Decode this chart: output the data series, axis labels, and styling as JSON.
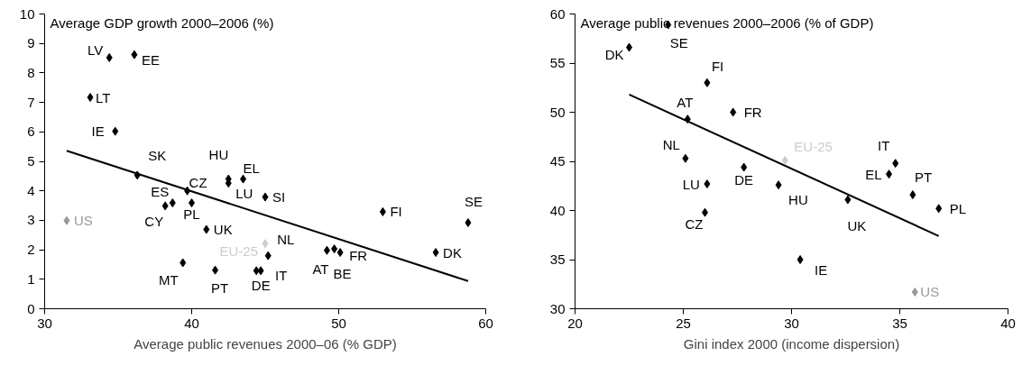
{
  "chart_data": [
    {
      "type": "scatter",
      "ylabel": "Average GDP growth 2000–2006 (%)",
      "xlabel": "Average public revenues 2000–06 (% GDP)",
      "xlim": [
        30,
        60
      ],
      "ylim": [
        0,
        10
      ],
      "xticks": [
        30,
        40,
        50,
        60
      ],
      "yticks": [
        0,
        1,
        2,
        3,
        4,
        5,
        6,
        7,
        8,
        9,
        10
      ],
      "series": [
        {
          "marker": "diamond",
          "color": "#000000",
          "x": [
            34.4,
            36.1,
            33.1,
            34.8,
            36.3,
            42.5,
            43.5,
            39.7,
            42.5,
            45.0,
            38.7,
            38.2,
            40.0,
            41.0,
            39.4,
            41.6,
            44.4,
            44.7,
            45.2,
            49.2,
            49.7,
            50.1,
            53.0,
            56.6,
            58.8
          ],
          "values": [
            8.52,
            8.62,
            7.17,
            6.02,
            4.53,
            4.4,
            4.4,
            4.0,
            4.26,
            3.79,
            3.59,
            3.49,
            3.59,
            2.69,
            1.56,
            1.31,
            1.29,
            1.29,
            1.8,
            1.98,
            2.03,
            1.91,
            3.29,
            1.91,
            2.92
          ]
        },
        {
          "name": "US",
          "marker": "diamond",
          "color": "#999999",
          "x": [
            31.5
          ],
          "values": [
            2.99
          ]
        },
        {
          "name": "EU-25",
          "marker": "diamond",
          "color": "#cccccc",
          "x": [
            45.0
          ],
          "values": [
            2.21
          ]
        },
        {
          "type": "line",
          "color": "#000000",
          "x": [
            31.5,
            58.8
          ],
          "values": [
            5.36,
            0.94
          ]
        }
      ],
      "annotations": [
        {
          "text": "LV",
          "x": 34.4,
          "y": 8.52
        },
        {
          "text": "EE",
          "x": 36.1,
          "y": 8.62
        },
        {
          "text": "LT",
          "x": 33.1,
          "y": 7.17
        },
        {
          "text": "IE",
          "x": 34.8,
          "y": 6.02
        },
        {
          "text": "SK",
          "x": 36.3,
          "y": 4.53
        },
        {
          "text": "HU",
          "x": 42.5,
          "y": 4.4
        },
        {
          "text": "EL",
          "x": 43.5,
          "y": 4.4
        },
        {
          "text": "CZ",
          "x": 39.7,
          "y": 4.0
        },
        {
          "text": "LU",
          "x": 42.5,
          "y": 4.26
        },
        {
          "text": "SI",
          "x": 45.0,
          "y": 3.79
        },
        {
          "text": "ES",
          "x": 38.7,
          "y": 3.59
        },
        {
          "text": "CY",
          "x": 38.2,
          "y": 3.49
        },
        {
          "text": "PL",
          "x": 40.0,
          "y": 3.59
        },
        {
          "text": "UK",
          "x": 41.0,
          "y": 2.69
        },
        {
          "text": "MT",
          "x": 39.4,
          "y": 1.56
        },
        {
          "text": "PT",
          "x": 41.6,
          "y": 1.31
        },
        {
          "text": "DE",
          "x": 44.4,
          "y": 1.29
        },
        {
          "text": "IT",
          "x": 44.7,
          "y": 1.29
        },
        {
          "text": "NL",
          "x": 45.2,
          "y": 1.8
        },
        {
          "text": "AT",
          "x": 49.2,
          "y": 1.98
        },
        {
          "text": "BE",
          "x": 49.7,
          "y": 2.03
        },
        {
          "text": "FR",
          "x": 50.1,
          "y": 1.91
        },
        {
          "text": "FI",
          "x": 53.0,
          "y": 3.29
        },
        {
          "text": "DK",
          "x": 56.6,
          "y": 1.91
        },
        {
          "text": "SE",
          "x": 58.8,
          "y": 2.92
        }
      ]
    },
    {
      "type": "scatter",
      "ylabel": "Average public revenues 2000–2006 (% of GDP)",
      "xlabel": "Gini index 2000 (income dispersion)",
      "xlim": [
        20,
        40
      ],
      "ylim": [
        30,
        60
      ],
      "xticks": [
        20,
        25,
        30,
        35,
        40
      ],
      "yticks": [
        30,
        35,
        40,
        45,
        50,
        55,
        60
      ],
      "series": [
        {
          "marker": "diamond",
          "color": "#000000",
          "x": [
            22.5,
            24.3,
            26.1,
            25.2,
            27.3,
            25.1,
            26.1,
            27.8,
            26.0,
            29.4,
            32.6,
            30.4,
            34.5,
            34.8,
            35.6,
            36.8
          ],
          "values": [
            56.6,
            58.9,
            53.0,
            49.3,
            50.0,
            45.3,
            42.7,
            44.4,
            39.8,
            42.6,
            41.1,
            35.0,
            43.7,
            44.8,
            41.6,
            40.2
          ]
        },
        {
          "name": "EU-25",
          "marker": "diamond",
          "color": "#cccccc",
          "x": [
            29.7
          ],
          "values": [
            45.1
          ]
        },
        {
          "name": "US",
          "marker": "diamond",
          "color": "#999999",
          "x": [
            35.7
          ],
          "values": [
            31.7
          ]
        },
        {
          "type": "line",
          "color": "#000000",
          "x": [
            22.5,
            36.8
          ],
          "values": [
            51.8,
            37.4
          ]
        }
      ],
      "annotations": [
        {
          "text": "DK",
          "x": 22.5,
          "y": 56.6
        },
        {
          "text": "SE",
          "x": 24.3,
          "y": 58.9
        },
        {
          "text": "FI",
          "x": 26.1,
          "y": 53.0
        },
        {
          "text": "AT",
          "x": 25.2,
          "y": 49.3
        },
        {
          "text": "FR",
          "x": 27.3,
          "y": 50.0
        },
        {
          "text": "NL",
          "x": 25.1,
          "y": 45.3
        },
        {
          "text": "LU",
          "x": 26.1,
          "y": 42.7
        },
        {
          "text": "DE",
          "x": 27.8,
          "y": 44.4
        },
        {
          "text": "CZ",
          "x": 26.0,
          "y": 39.8
        },
        {
          "text": "HU",
          "x": 29.4,
          "y": 42.6
        },
        {
          "text": "UK",
          "x": 32.6,
          "y": 41.1
        },
        {
          "text": "IE",
          "x": 30.4,
          "y": 35.0
        },
        {
          "text": "EL",
          "x": 34.5,
          "y": 43.7
        },
        {
          "text": "IT",
          "x": 34.8,
          "y": 44.8
        },
        {
          "text": "PT",
          "x": 35.6,
          "y": 41.6
        },
        {
          "text": "PL",
          "x": 36.8,
          "y": 40.2
        }
      ]
    }
  ]
}
